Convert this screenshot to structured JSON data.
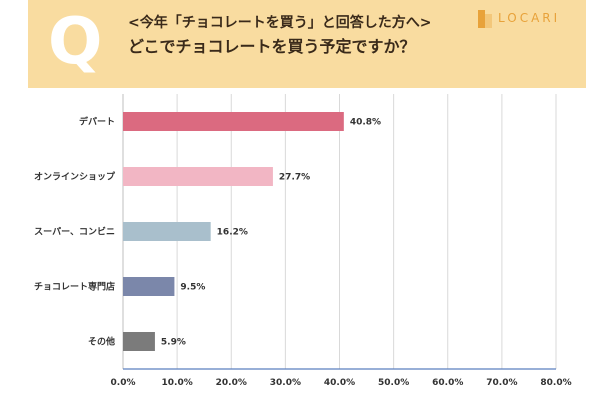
{
  "header": {
    "q_letter": "Q",
    "line1": "<今年「チョコレートを買う」と回答した方へ>",
    "line2": "どこでチョコレートを買う予定ですか？",
    "logo_text": "LOCARI",
    "background": "#f9dca0",
    "logo_color": "#e8a23a"
  },
  "chart_data": {
    "type": "bar",
    "orientation": "horizontal",
    "categories": [
      "デパート",
      "オンラインショップ",
      "スーパー、コンビニ",
      "チョコレート専門店",
      "その他"
    ],
    "values": [
      40.8,
      27.7,
      16.2,
      9.5,
      5.9
    ],
    "value_labels": [
      "40.8%",
      "27.7%",
      "16.2%",
      "9.5%",
      "5.9%"
    ],
    "colors": [
      "#db6a80",
      "#f2b6c4",
      "#a9bfcc",
      "#7b87aa",
      "#7b7b7b"
    ],
    "xlim": [
      0,
      80
    ],
    "ticks": [
      0,
      10,
      20,
      30,
      40,
      50,
      60,
      70,
      80
    ],
    "tick_labels": [
      "0.0%",
      "10.0%",
      "20.0%",
      "30.0%",
      "40.0%",
      "50.0%",
      "60.0%",
      "70.0%",
      "80.0%"
    ],
    "grid": true,
    "title": "",
    "xlabel": "",
    "ylabel": ""
  }
}
